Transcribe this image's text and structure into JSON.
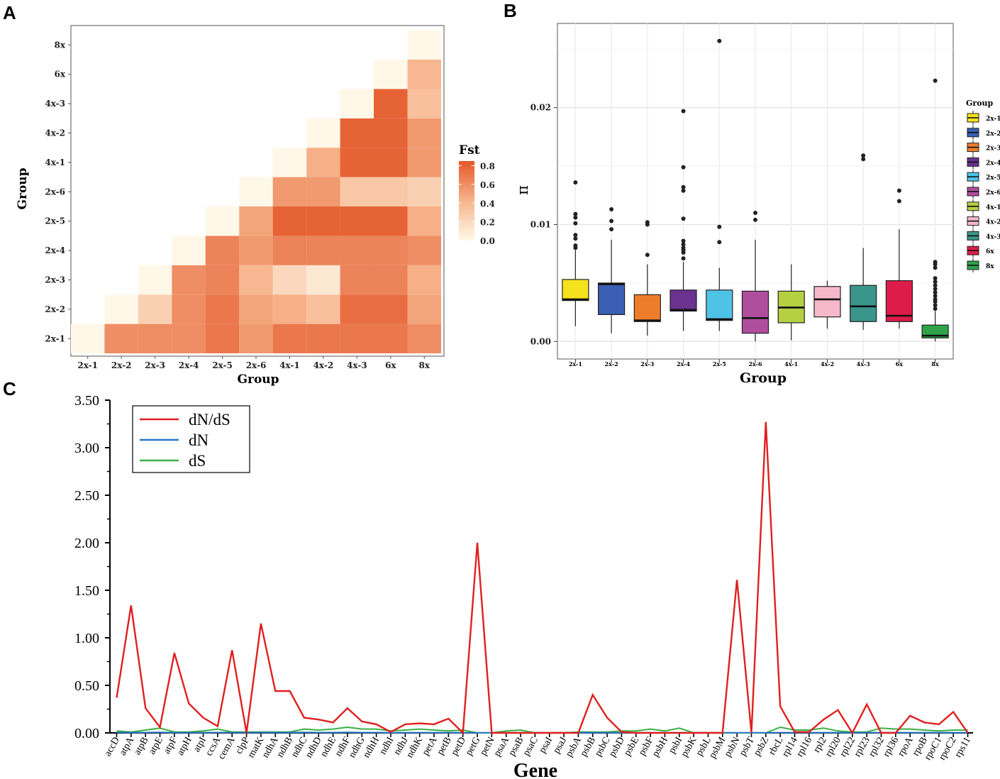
{
  "panel_labels": {
    "a": "A",
    "b": "B",
    "c": "C"
  },
  "chart_data": [
    {
      "type": "heatmap",
      "panel": "A",
      "xlabel": "Group",
      "ylabel": "Group",
      "categories": [
        "2x-1",
        "2x-2",
        "2x-3",
        "2x-4",
        "2x-5",
        "2x-6",
        "4x-1",
        "4x-2",
        "4x-3",
        "6x",
        "8x"
      ],
      "legend": {
        "title": "Fst",
        "ticks": [
          "0.8",
          "0.6",
          "0.4",
          "0.2",
          "0.0"
        ],
        "tick_values": [
          0.8,
          0.6,
          0.4,
          0.2,
          0.0
        ],
        "range": [
          0,
          0.85
        ]
      },
      "matrix": [
        [
          0.0
        ],
        [
          0.6,
          0.0
        ],
        [
          0.6,
          0.25,
          0.0
        ],
        [
          0.6,
          0.6,
          0.6,
          0.0
        ],
        [
          0.7,
          0.7,
          0.65,
          0.65,
          0.0
        ],
        [
          0.55,
          0.5,
          0.4,
          0.55,
          0.5,
          0.0
        ],
        [
          0.7,
          0.45,
          0.2,
          0.65,
          0.8,
          0.55,
          0.0
        ],
        [
          0.7,
          0.35,
          0.1,
          0.65,
          0.8,
          0.55,
          0.45,
          0.0
        ],
        [
          0.7,
          0.75,
          0.65,
          0.65,
          0.8,
          0.3,
          0.8,
          0.8,
          0.0
        ],
        [
          0.7,
          0.75,
          0.65,
          0.65,
          0.8,
          0.3,
          0.8,
          0.8,
          0.8,
          0.0
        ],
        [
          0.6,
          0.5,
          0.45,
          0.6,
          0.45,
          0.25,
          0.55,
          0.55,
          0.35,
          0.4,
          0.0
        ]
      ]
    },
    {
      "type": "box",
      "panel": "B",
      "xlabel": "Group",
      "ylabel": "π",
      "ylim": [
        -0.0015,
        0.0272
      ],
      "yticks": [
        0.0,
        0.01,
        0.02
      ],
      "ytick_labels": [
        "0.00",
        "0.01",
        "0.02"
      ],
      "legend_title": "Group",
      "groups": [
        {
          "name": "2x-1",
          "color": "#f5e11e",
          "q1": 0.0035,
          "median": 0.0036,
          "q3": 0.0053,
          "whisker_low": 0.0013,
          "whisker_high": 0.0078,
          "outliers": [
            0.008,
            0.0082,
            0.0088,
            0.0091,
            0.0101,
            0.0106,
            0.0109,
            0.0136
          ]
        },
        {
          "name": "2x-2",
          "color": "#3a5fb3",
          "q1": 0.0023,
          "median": 0.0049,
          "q3": 0.005,
          "whisker_low": 0.0007,
          "whisker_high": 0.0087,
          "outliers": [
            0.0096,
            0.0103,
            0.0113
          ]
        },
        {
          "name": "2x-3",
          "color": "#ee7d2b",
          "q1": 0.0017,
          "median": 0.0018,
          "q3": 0.004,
          "whisker_low": 0.0005,
          "whisker_high": 0.0066,
          "outliers": [
            0.0074,
            0.01,
            0.0102
          ]
        },
        {
          "name": "2x-4",
          "color": "#6b3290",
          "q1": 0.0026,
          "median": 0.0027,
          "q3": 0.0044,
          "whisker_low": 0.0009,
          "whisker_high": 0.0068,
          "outliers": [
            0.0071,
            0.0076,
            0.0078,
            0.008,
            0.0083,
            0.0086,
            0.0105,
            0.0129,
            0.0132,
            0.0149,
            0.0197
          ]
        },
        {
          "name": "2x-5",
          "color": "#4fc3e6",
          "q1": 0.0018,
          "median": 0.0019,
          "q3": 0.0044,
          "whisker_low": 0.0009,
          "whisker_high": 0.0063,
          "outliers": [
            0.0085,
            0.0098,
            0.0257
          ]
        },
        {
          "name": "2x-6",
          "color": "#b04e9e",
          "q1": 0.0007,
          "median": 0.002,
          "q3": 0.0043,
          "whisker_low": 0.0,
          "whisker_high": 0.0087,
          "outliers": [
            0.0104,
            0.011
          ]
        },
        {
          "name": "4x-1",
          "color": "#b6d044",
          "q1": 0.0016,
          "median": 0.0029,
          "q3": 0.0043,
          "whisker_low": 0.0001,
          "whisker_high": 0.0066,
          "outliers": []
        },
        {
          "name": "4x-2",
          "color": "#f6b8cb",
          "q1": 0.0021,
          "median": 0.0036,
          "q3": 0.0047,
          "whisker_low": 0.0011,
          "whisker_high": 0.0052,
          "outliers": []
        },
        {
          "name": "4x-3",
          "color": "#3a958a",
          "q1": 0.0017,
          "median": 0.003,
          "q3": 0.0048,
          "whisker_low": 0.001,
          "whisker_high": 0.008,
          "outliers": [
            0.0156,
            0.0159
          ]
        },
        {
          "name": "6x",
          "color": "#dd1c49",
          "q1": 0.0017,
          "median": 0.0022,
          "q3": 0.0052,
          "whisker_low": 0.0011,
          "whisker_high": 0.0096,
          "outliers": [
            0.012,
            0.0129
          ]
        },
        {
          "name": "8x",
          "color": "#2fa44a",
          "q1": 0.0003,
          "median": 0.0005,
          "q3": 0.0014,
          "whisker_low": 0.0,
          "whisker_high": 0.0026,
          "outliers": [
            0.0028,
            0.0031,
            0.0034,
            0.0036,
            0.0039,
            0.0042,
            0.0045,
            0.0048,
            0.0051,
            0.0054,
            0.0063,
            0.0066,
            0.0068,
            0.0223
          ]
        }
      ]
    },
    {
      "type": "line",
      "panel": "C",
      "xlabel": "Gene",
      "ylabel": "",
      "ylim": [
        0,
        3.5
      ],
      "yticks": [
        0.0,
        0.5,
        1.0,
        1.5,
        2.0,
        2.5,
        3.0,
        3.5
      ],
      "ytick_labels": [
        "0.00",
        "0.50",
        "1.00",
        "1.50",
        "2.00",
        "2.50",
        "3.00",
        "3.50"
      ],
      "categories": [
        "accD",
        "atpA",
        "atpB",
        "atpE",
        "atpF",
        "atpH",
        "atpI",
        "ccsA",
        "cemA",
        "clpP",
        "matK",
        "ndhA",
        "ndhB",
        "ndhC",
        "ndhD",
        "ndhE",
        "ndhF",
        "ndhG",
        "ndhH",
        "ndhI",
        "ndhJ",
        "ndhK",
        "petA",
        "petB",
        "petD",
        "petG",
        "petN",
        "psaA",
        "psaB",
        "psaC",
        "psaI",
        "psaJ",
        "psbA",
        "psbB",
        "psbC",
        "psbD",
        "psbE",
        "psbF",
        "psbH",
        "psbI",
        "psbK",
        "psbL",
        "psbM",
        "psbN",
        "psbT",
        "psbZ",
        "rbcL",
        "rpl14",
        "rpl16",
        "rpl2",
        "rpl20",
        "rpl22",
        "rpl23",
        "rpl32",
        "rpl36",
        "rpoA",
        "rpoB",
        "rpoC1",
        "rpoC2",
        "rps11"
      ],
      "series": [
        {
          "name": "dN/dS",
          "color": "#e02020",
          "values": [
            0.37,
            1.34,
            0.26,
            0.06,
            0.84,
            0.31,
            0.16,
            0.07,
            0.87,
            0.0,
            1.15,
            0.44,
            0.44,
            0.16,
            0.14,
            0.11,
            0.26,
            0.12,
            0.09,
            0.01,
            0.09,
            0.1,
            0.09,
            0.15,
            0.0,
            2.0,
            0.0,
            0.0,
            0.0,
            0.0,
            0.0,
            0.0,
            0.0,
            0.4,
            0.16,
            0.01,
            0.0,
            0.0,
            0.0,
            0.0,
            0.0,
            0.0,
            0.0,
            1.61,
            0.0,
            3.27,
            0.28,
            0.01,
            0.01,
            0.14,
            0.24,
            0.0,
            0.3,
            0.0,
            0.0,
            0.18,
            0.11,
            0.09,
            0.22,
            0.0
          ]
        },
        {
          "name": "dN",
          "color": "#2878c8",
          "values": [
            0.005,
            0.003,
            0.004,
            0.005,
            0.003,
            0.003,
            0.003,
            0.004,
            0.004,
            0.003,
            0.004,
            0.004,
            0.003,
            0.005,
            0.004,
            0.004,
            0.005,
            0.004,
            0.004,
            0.002,
            0.003,
            0.003,
            0.003,
            0.003,
            0.002,
            0.002,
            0.002,
            0.002,
            0.002,
            0.002,
            0.002,
            0.002,
            0.002,
            0.003,
            0.003,
            0.002,
            0.002,
            0.002,
            0.002,
            0.002,
            0.002,
            0.002,
            0.002,
            0.002,
            0.002,
            0.002,
            0.003,
            0.003,
            0.003,
            0.003,
            0.003,
            0.002,
            0.003,
            0.003,
            0.003,
            0.003,
            0.003,
            0.003,
            0.003,
            0.003
          ]
        },
        {
          "name": "dS",
          "color": "#3cb043",
          "values": [
            0.02,
            0.01,
            0.03,
            0.05,
            0.01,
            0.01,
            0.02,
            0.04,
            0.01,
            0.01,
            0.01,
            0.01,
            0.01,
            0.04,
            0.03,
            0.04,
            0.06,
            0.04,
            0.04,
            0.02,
            0.03,
            0.04,
            0.03,
            0.02,
            0.03,
            0.0,
            0.0,
            0.02,
            0.03,
            0.0,
            0.0,
            0.0,
            0.01,
            0.01,
            0.01,
            0.02,
            0.02,
            0.04,
            0.02,
            0.05,
            0.0,
            0.0,
            0.0,
            0.0,
            0.0,
            0.0,
            0.06,
            0.03,
            0.03,
            0.05,
            0.02,
            0.01,
            0.01,
            0.05,
            0.04,
            0.04,
            0.03,
            0.02,
            0.03,
            0.03
          ]
        }
      ]
    }
  ]
}
